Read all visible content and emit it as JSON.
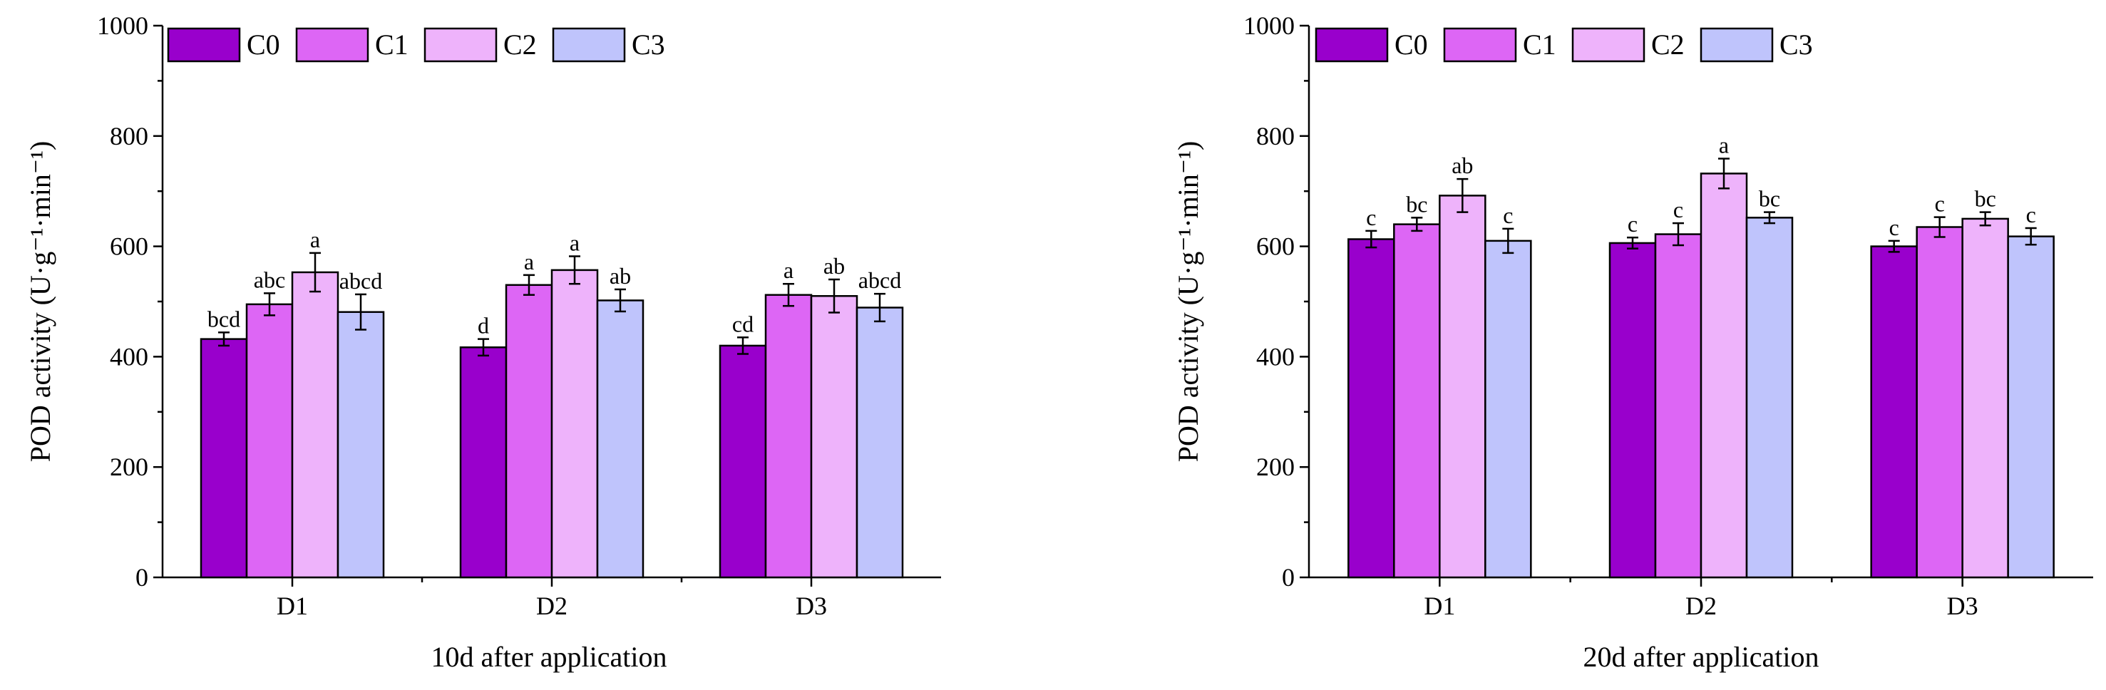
{
  "chart_data": [
    {
      "type": "bar",
      "title": "",
      "xlabel": "10d after application",
      "ylabel": "POD activity (U·g⁻¹·min⁻¹)",
      "ylim": [
        0,
        1000
      ],
      "yticks": [
        0,
        200,
        400,
        600,
        800,
        1000
      ],
      "categories": [
        "D1",
        "D2",
        "D3"
      ],
      "legend_position": "top-left",
      "series": [
        {
          "name": "C0",
          "color": "#9900CC",
          "values": [
            432,
            417,
            420
          ],
          "errors": [
            12,
            15,
            15
          ],
          "letters": [
            "bcd",
            "d",
            "cd"
          ]
        },
        {
          "name": "C1",
          "color": "#DD66F5",
          "values": [
            495,
            530,
            512
          ],
          "errors": [
            20,
            18,
            20
          ],
          "letters": [
            "abc",
            "a",
            "a"
          ]
        },
        {
          "name": "C2",
          "color": "#EEB3FB",
          "values": [
            553,
            557,
            510
          ],
          "errors": [
            35,
            25,
            30
          ],
          "letters": [
            "a",
            "a",
            "ab"
          ]
        },
        {
          "name": "C3",
          "color": "#BFC4FC",
          "values": [
            481,
            502,
            489
          ],
          "errors": [
            32,
            20,
            25
          ],
          "letters": [
            "abcd",
            "ab",
            "abcd"
          ]
        }
      ]
    },
    {
      "type": "bar",
      "title": "",
      "xlabel": "20d after application",
      "ylabel": "POD activity (U·g⁻¹·min⁻¹)",
      "ylim": [
        0,
        1000
      ],
      "yticks": [
        0,
        200,
        400,
        600,
        800,
        1000
      ],
      "categories": [
        "D1",
        "D2",
        "D3"
      ],
      "legend_position": "top-left",
      "series": [
        {
          "name": "C0",
          "color": "#9900CC",
          "values": [
            613,
            606,
            600
          ],
          "errors": [
            15,
            10,
            10
          ],
          "letters": [
            "c",
            "c",
            "c"
          ]
        },
        {
          "name": "C1",
          "color": "#DD66F5",
          "values": [
            640,
            622,
            635
          ],
          "errors": [
            12,
            20,
            18
          ],
          "letters": [
            "bc",
            "c",
            "c"
          ]
        },
        {
          "name": "C2",
          "color": "#EEB3FB",
          "values": [
            692,
            732,
            650
          ],
          "errors": [
            30,
            27,
            12
          ],
          "letters": [
            "ab",
            "a",
            "bc"
          ]
        },
        {
          "name": "C3",
          "color": "#BFC4FC",
          "values": [
            610,
            652,
            618
          ],
          "errors": [
            22,
            10,
            15
          ],
          "letters": [
            "c",
            "bc",
            "c"
          ]
        }
      ]
    }
  ]
}
